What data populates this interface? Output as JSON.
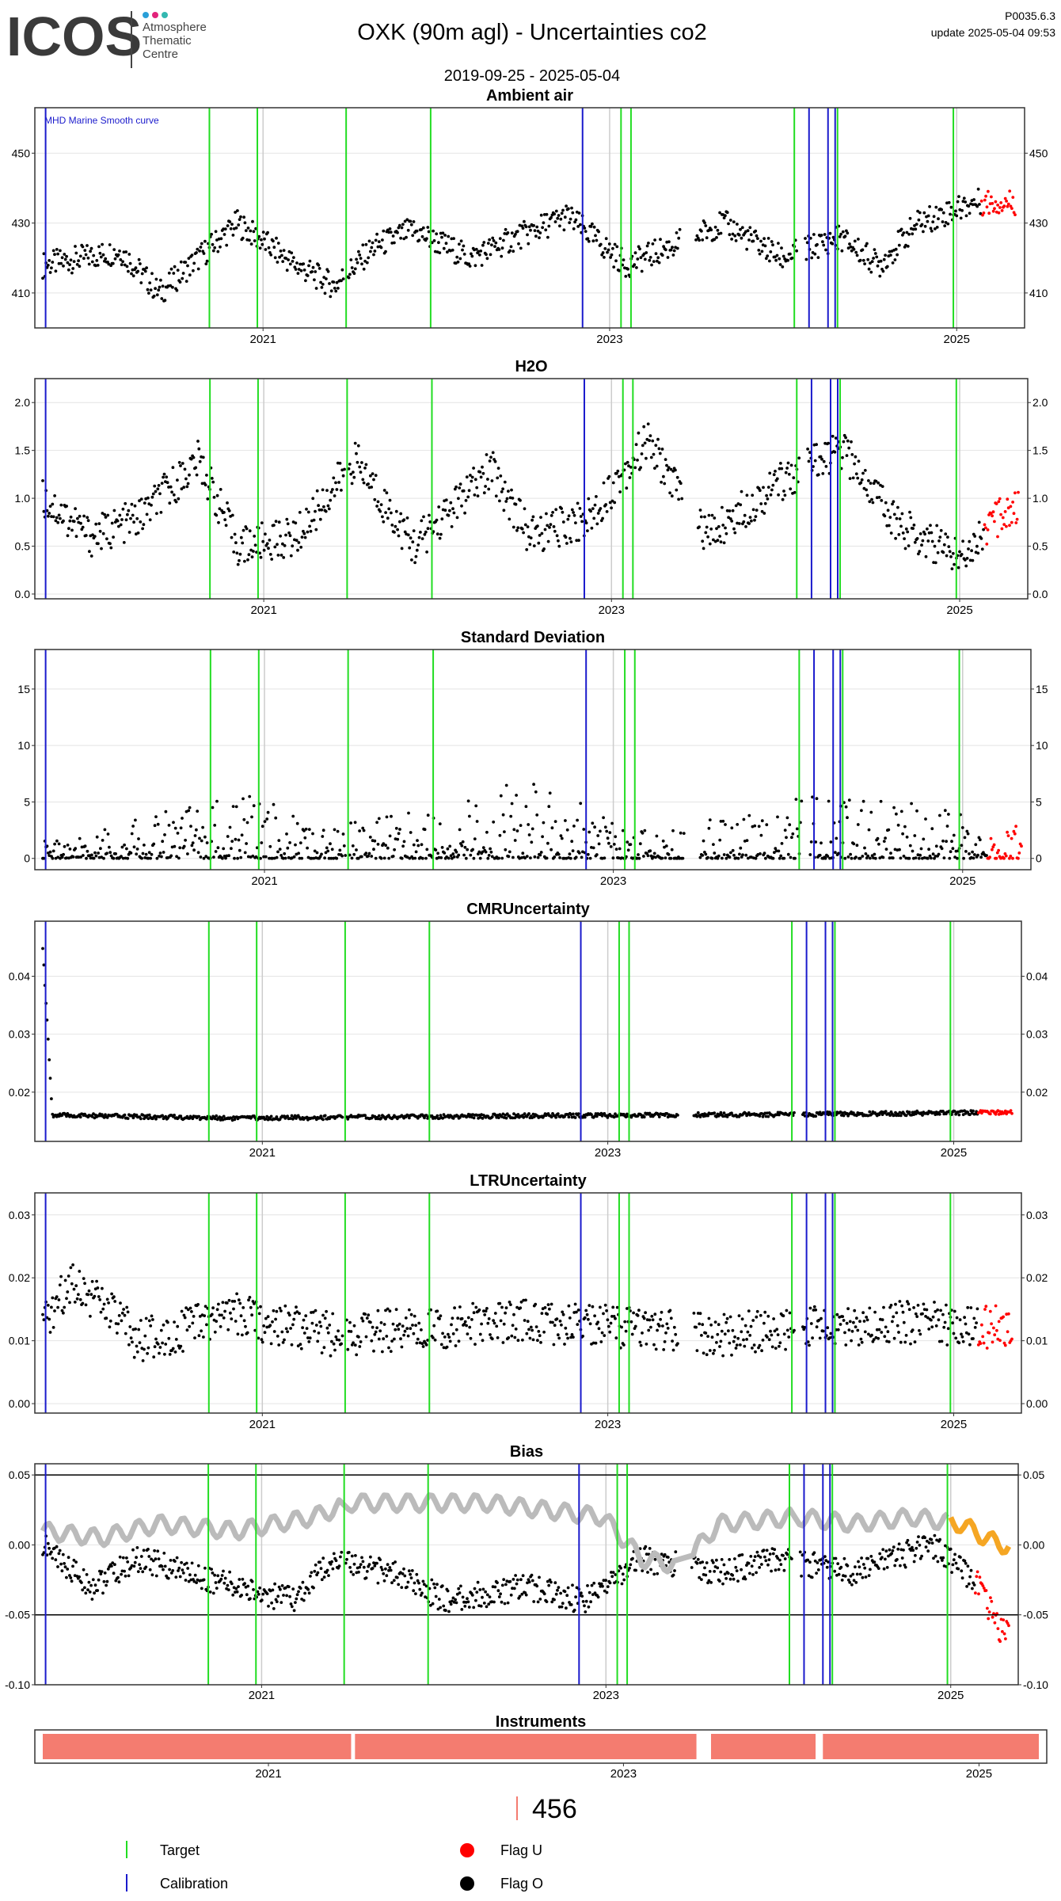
{
  "header": {
    "logo_text": "ICOS",
    "logo_sub": [
      "Atmosphere",
      "Thematic",
      "Centre"
    ],
    "title": "OXK  (90m agl) - Uncertainties co2",
    "period": "2019-09-25 - 2025-05-04",
    "code": "P0035.6.3",
    "update": "update  2025-05-04 09:53"
  },
  "colors": {
    "data": "#000000",
    "flag_u": "#ff0000",
    "target": "#22dd22",
    "calibration": "#1a1acc",
    "bias_smooth": "#bbbbbb",
    "bias_smooth_recent": "#f5a623",
    "instrument": "#f47c70",
    "gridline": "#e4e4e4",
    "year_line": "#cccccc",
    "ref_line": "#000000"
  },
  "time_axis": {
    "start": "2019-09-25",
    "end": "2025-05-04",
    "ticks": [
      "2021",
      "2023",
      "2025"
    ]
  },
  "event_lines": {
    "target": [
      "2020-09-10",
      "2020-12-20",
      "2021-06-25",
      "2021-12-20",
      "2023-01-25",
      "2023-02-15",
      "2024-01-25",
      "2024-04-25",
      "2024-12-25"
    ],
    "calibration": [
      "2019-10-01",
      "2022-11-05",
      "2024-02-25",
      "2024-04-05",
      "2024-04-20"
    ],
    "grey": [
      "2021-01-01",
      "2023-01-01",
      "2025-01-01"
    ]
  },
  "chart_data": [
    {
      "type": "scatter",
      "title": "Ambient air",
      "annotation": "MHD Marine Smooth curve",
      "ylim": [
        400,
        463
      ],
      "yticks": [
        410,
        430,
        450
      ],
      "series": [
        {
          "values": [
            [
              0.0,
              418
            ],
            [
              0.08,
              422
            ],
            [
              0.12,
              410
            ],
            [
              0.16,
              420
            ],
            [
              0.2,
              430
            ],
            [
              0.26,
              418
            ],
            [
              0.3,
              412
            ],
            [
              0.34,
              423
            ],
            [
              0.38,
              428
            ],
            [
              0.44,
              420
            ],
            [
              0.48,
              425
            ],
            [
              0.54,
              432
            ],
            [
              0.6,
              418
            ],
            [
              0.66,
              425
            ],
            [
              0.7,
              430
            ],
            [
              0.76,
              420
            ],
            [
              0.82,
              426
            ],
            [
              0.86,
              418
            ],
            [
              0.9,
              430
            ],
            [
              0.96,
              436
            ]
          ]
        }
      ]
    },
    {
      "type": "scatter",
      "title": "H2O",
      "ylim": [
        -0.05,
        2.25
      ],
      "yticks": [
        "0.0",
        "0.5",
        "1.0",
        "1.5",
        "2.0"
      ],
      "series": [
        {
          "values": [
            [
              0.0,
              1.0
            ],
            [
              0.05,
              0.6
            ],
            [
              0.1,
              0.8
            ],
            [
              0.16,
              1.4
            ],
            [
              0.2,
              0.5
            ],
            [
              0.26,
              0.6
            ],
            [
              0.32,
              1.4
            ],
            [
              0.38,
              0.5
            ],
            [
              0.46,
              1.3
            ],
            [
              0.5,
              0.6
            ],
            [
              0.56,
              0.8
            ],
            [
              0.62,
              1.6
            ],
            [
              0.68,
              0.6
            ],
            [
              0.76,
              1.2
            ],
            [
              0.82,
              1.5
            ],
            [
              0.88,
              0.7
            ],
            [
              0.94,
              0.4
            ],
            [
              0.99,
              0.9
            ]
          ]
        }
      ]
    },
    {
      "type": "scatter",
      "title": "Standard Deviation",
      "ylim": [
        -1,
        18.5
      ],
      "yticks": [
        "0",
        "5",
        "10",
        "15"
      ],
      "series": [
        {
          "values": [
            [
              0.0,
              0.5
            ],
            [
              0.1,
              1.2
            ],
            [
              0.2,
              2.0
            ],
            [
              0.3,
              1.0
            ],
            [
              0.4,
              1.5
            ],
            [
              0.5,
              2.5
            ],
            [
              0.6,
              0.8
            ],
            [
              0.7,
              1.4
            ],
            [
              0.8,
              2.2
            ],
            [
              0.9,
              1.6
            ],
            [
              0.99,
              1.0
            ]
          ]
        }
      ]
    },
    {
      "type": "scatter",
      "title": "CMRUncertainty",
      "ylim": [
        0.0115,
        0.0495
      ],
      "yticks": [
        "0.02",
        "0.03",
        "0.04"
      ],
      "series": [
        {
          "values": [
            [
              0.0,
              0.045
            ],
            [
              0.01,
              0.016
            ],
            [
              0.2,
              0.0155
            ],
            [
              0.4,
              0.0158
            ],
            [
              0.6,
              0.016
            ],
            [
              0.8,
              0.0162
            ],
            [
              0.99,
              0.0165
            ]
          ]
        }
      ]
    },
    {
      "type": "scatter",
      "title": "LTRUncertainty",
      "ylim": [
        -0.0015,
        0.0335
      ],
      "yticks": [
        "0.00",
        "0.01",
        "0.02",
        "0.03"
      ],
      "series": [
        {
          "values": [
            [
              0.0,
              0.012
            ],
            [
              0.03,
              0.02
            ],
            [
              0.1,
              0.01
            ],
            [
              0.2,
              0.014
            ],
            [
              0.3,
              0.011
            ],
            [
              0.4,
              0.012
            ],
            [
              0.5,
              0.013
            ],
            [
              0.6,
              0.012
            ],
            [
              0.7,
              0.011
            ],
            [
              0.8,
              0.012
            ],
            [
              0.9,
              0.013
            ],
            [
              0.99,
              0.012
            ]
          ]
        }
      ]
    },
    {
      "type": "scatter",
      "title": "Bias",
      "ylim": [
        -0.1,
        0.058
      ],
      "yticks": [
        "-0.10",
        "-0.05",
        "0.00",
        "0.05"
      ],
      "reference_lines": [
        0.05,
        -0.05
      ],
      "series": [
        {
          "values": [
            [
              0.0,
              0.0
            ],
            [
              0.05,
              -0.03
            ],
            [
              0.1,
              -0.01
            ],
            [
              0.2,
              -0.03
            ],
            [
              0.26,
              -0.04
            ],
            [
              0.3,
              -0.01
            ],
            [
              0.36,
              -0.02
            ],
            [
              0.42,
              -0.04
            ],
            [
              0.5,
              -0.03
            ],
            [
              0.56,
              -0.04
            ],
            [
              0.62,
              -0.01
            ],
            [
              0.7,
              -0.02
            ],
            [
              0.76,
              -0.01
            ],
            [
              0.84,
              -0.02
            ],
            [
              0.92,
              0.0
            ],
            [
              0.97,
              -0.03
            ],
            [
              0.99,
              -0.06
            ]
          ]
        },
        {
          "values": [
            [
              0.0,
              0.01
            ],
            [
              0.06,
              0.005
            ],
            [
              0.12,
              0.015
            ],
            [
              0.2,
              0.01
            ],
            [
              0.28,
              0.02
            ],
            [
              0.32,
              0.03
            ],
            [
              0.4,
              0.03
            ],
            [
              0.46,
              0.03
            ],
            [
              0.52,
              0.025
            ],
            [
              0.58,
              0.02
            ],
            [
              0.62,
              -0.01
            ],
            [
              0.66,
              -0.015
            ],
            [
              0.7,
              0.015
            ],
            [
              0.78,
              0.02
            ],
            [
              0.84,
              0.015
            ],
            [
              0.9,
              0.02
            ],
            [
              0.95,
              0.015
            ],
            [
              0.99,
              0.0
            ]
          ]
        }
      ]
    },
    {
      "type": "bar",
      "title": "Instruments",
      "series": [
        {
          "name": "456",
          "values": [
            [
              "2019-09-25",
              "2021-06-20"
            ],
            [
              "2021-06-28",
              "2023-05-31"
            ],
            [
              "2023-06-30",
              "2024-01-31"
            ],
            [
              "2024-02-15",
              "2025-05-04"
            ]
          ]
        }
      ]
    }
  ],
  "legend": {
    "instrument_id": "456",
    "items": [
      {
        "label": "Target",
        "symbol": "line",
        "color_key": "target"
      },
      {
        "label": "Flag U",
        "symbol": "dot",
        "color_key": "flag_u"
      },
      {
        "label": "Calibration",
        "symbol": "line",
        "color_key": "calibration"
      },
      {
        "label": "Flag O",
        "symbol": "dot",
        "color_key": "data"
      }
    ]
  }
}
